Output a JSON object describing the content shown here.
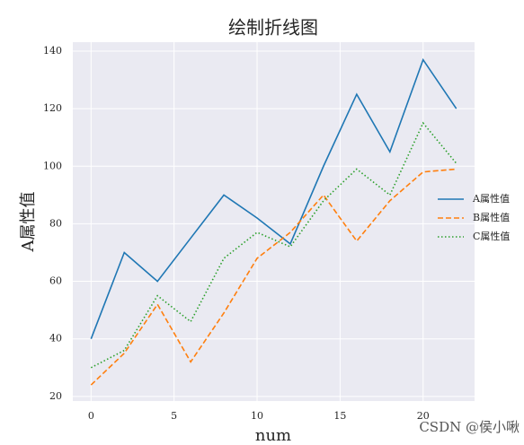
{
  "chart_data": {
    "type": "line",
    "title": "绘制折线图",
    "x_label": "num",
    "y_label": "A属性值",
    "x": [
      0,
      2,
      4,
      6,
      8,
      10,
      12,
      14,
      16,
      18,
      20,
      22
    ],
    "series": [
      {
        "name": "A属性值",
        "color": "#1f77b4",
        "linestyle": "solid",
        "values": [
          40,
          70,
          60,
          75,
          90,
          82,
          73,
          100,
          125,
          105,
          137,
          120
        ]
      },
      {
        "name": "B属性值",
        "color": "#ff7f0e",
        "linestyle": "dashed",
        "values": [
          24,
          35,
          52,
          32,
          49,
          68,
          77,
          90,
          74,
          88,
          98,
          99
        ]
      },
      {
        "name": "C属性值",
        "color": "#2ca02c",
        "linestyle": "dotted",
        "values": [
          30,
          36,
          55,
          46,
          68,
          77,
          72,
          88,
          99,
          90,
          115,
          101
        ]
      }
    ],
    "xlim": [
      -1.1,
      23.1
    ],
    "ylim": [
      18.4,
      143.1
    ],
    "xticks": [
      0,
      5,
      10,
      15,
      20
    ],
    "yticks": [
      20,
      40,
      60,
      80,
      100,
      120,
      140
    ],
    "grid": true,
    "legend": "right",
    "watermark": "CSDN @侯小啾"
  }
}
